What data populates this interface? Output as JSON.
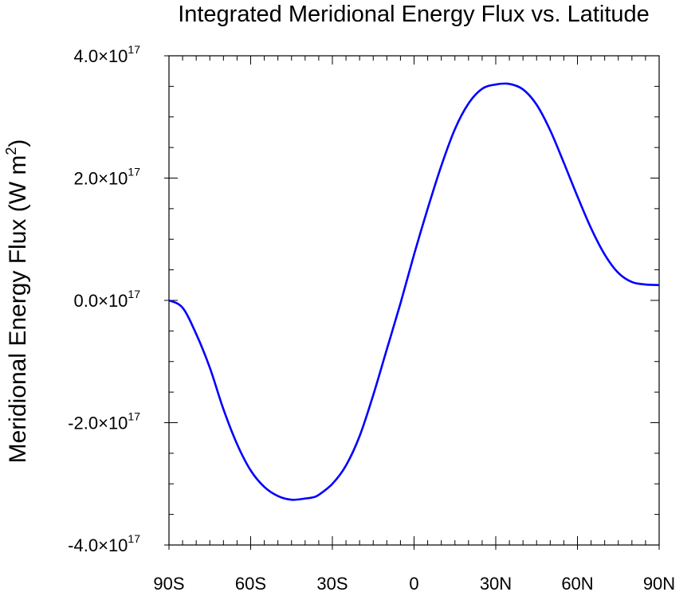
{
  "chart_data": {
    "type": "line",
    "title": "Integrated Meridional Energy Flux vs. Latitude",
    "ylabel": "Meridional Energy Flux (W m",
    "ylabel_sup": "2",
    "ylabel_close": ")",
    "xlabel": "",
    "xlim": [
      -90,
      90
    ],
    "ylim": [
      -4e+17,
      4e+17
    ],
    "grid": false,
    "x_ticks": [
      {
        "value": -90,
        "label": "90S"
      },
      {
        "value": -60,
        "label": "60S"
      },
      {
        "value": -30,
        "label": "30S"
      },
      {
        "value": 0,
        "label": "0"
      },
      {
        "value": 30,
        "label": "30N"
      },
      {
        "value": 60,
        "label": "60N"
      },
      {
        "value": 90,
        "label": "90N"
      }
    ],
    "y_ticks": [
      {
        "value": 4e+17,
        "mantissa": "4.0",
        "exp": "17"
      },
      {
        "value": 2e+17,
        "mantissa": "2.0",
        "exp": "17"
      },
      {
        "value": 0,
        "mantissa": "0.0",
        "exp": "17"
      },
      {
        "value": -2e+17,
        "mantissa": "-2.0",
        "exp": "17"
      },
      {
        "value": -4e+17,
        "mantissa": "-4.0",
        "exp": "17"
      }
    ],
    "series": [
      {
        "color": "#0000ff",
        "x": [
          -90,
          -85,
          -80,
          -75,
          -70,
          -65,
          -60,
          -55,
          -50,
          -45,
          -40,
          -37,
          -35,
          -30,
          -25,
          -20,
          -15,
          -10,
          -5,
          0,
          5,
          10,
          15,
          20,
          25,
          30,
          35,
          40,
          45,
          50,
          55,
          60,
          65,
          70,
          75,
          80,
          85,
          90
        ],
        "y": [
          0,
          -1.2e+16,
          -5.5e+16,
          -1.1e+17,
          -1.78e+17,
          -2.35e+17,
          -2.78e+17,
          -3.05e+17,
          -3.2e+17,
          -3.26e+17,
          -3.24e+17,
          -3.22e+17,
          -3.18e+17,
          -3e+17,
          -2.7e+17,
          -2.22e+17,
          -1.55e+17,
          -8e+16,
          -5000000000000000.0,
          7.5e+16,
          1.5e+17,
          2.2e+17,
          2.8e+17,
          3.22e+17,
          3.46e+17,
          3.53e+17,
          3.54e+17,
          3.45e+17,
          3.2e+17,
          2.78e+17,
          2.25e+17,
          1.7e+17,
          1.18e+17,
          7.5e+16,
          4.5e+16,
          3e+16,
          2.6e+16,
          2.5e+16
        ]
      }
    ]
  }
}
